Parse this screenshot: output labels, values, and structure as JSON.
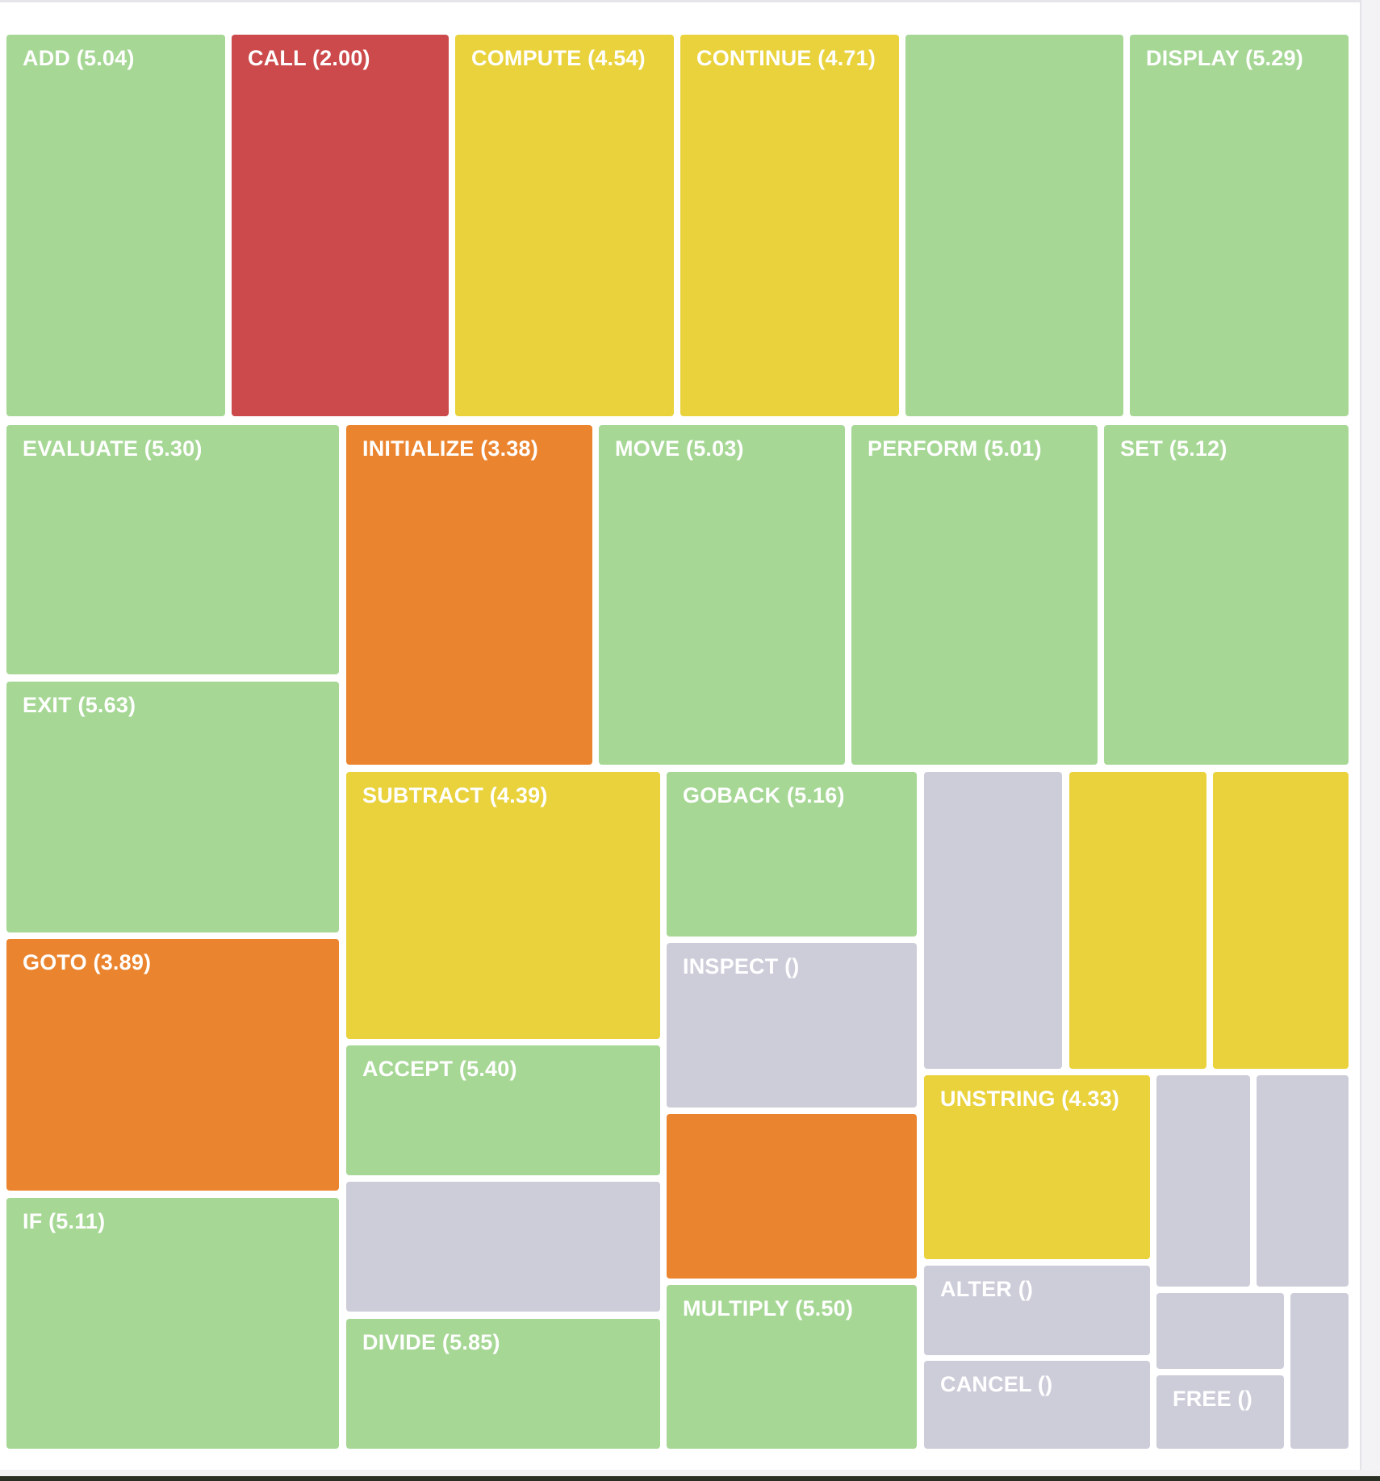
{
  "chart_data": {
    "type": "treemap",
    "title": "",
    "color_scale": {
      "red": "#cc4a4b",
      "orange": "#eb842f",
      "yellow": "#e9d23c",
      "green": "#a6d795",
      "grey": "#cdcdda"
    },
    "cells": [
      {
        "name": "ADD",
        "label": "ADD (5.04)",
        "score": 5.04,
        "color": "#a6d795"
      },
      {
        "name": "CALL",
        "label": "CALL (2.00)",
        "score": 2.0,
        "color": "#cc4a4b"
      },
      {
        "name": "COMPUTE",
        "label": "COMPUTE (4.54)",
        "score": 4.54,
        "color": "#e9d23c"
      },
      {
        "name": "CONTINUE",
        "label": "CONTINUE (4.71)",
        "score": 4.71,
        "color": "#e9d23c"
      },
      {
        "name": "",
        "label": "",
        "score": null,
        "color": "#a6d795"
      },
      {
        "name": "DISPLAY",
        "label": "DISPLAY (5.29)",
        "score": 5.29,
        "color": "#a6d795"
      },
      {
        "name": "EVALUATE",
        "label": "EVALUATE (5.30)",
        "score": 5.3,
        "color": "#a6d795"
      },
      {
        "name": "INITIALIZE",
        "label": "INITIALIZE (3.38)",
        "score": 3.38,
        "color": "#eb842f"
      },
      {
        "name": "MOVE",
        "label": "MOVE (5.03)",
        "score": 5.03,
        "color": "#a6d795"
      },
      {
        "name": "PERFORM",
        "label": "PERFORM (5.01)",
        "score": 5.01,
        "color": "#a6d795"
      },
      {
        "name": "SET",
        "label": "SET (5.12)",
        "score": 5.12,
        "color": "#a6d795"
      },
      {
        "name": "EXIT",
        "label": "EXIT (5.63)",
        "score": 5.63,
        "color": "#a6d795"
      },
      {
        "name": "GOTO",
        "label": "GOTO (3.89)",
        "score": 3.89,
        "color": "#eb842f"
      },
      {
        "name": "IF",
        "label": "IF (5.11)",
        "score": 5.11,
        "color": "#a6d795"
      },
      {
        "name": "SUBTRACT",
        "label": "SUBTRACT (4.39)",
        "score": 4.39,
        "color": "#e9d23c"
      },
      {
        "name": "ACCEPT",
        "label": "ACCEPT (5.40)",
        "score": 5.4,
        "color": "#a6d795"
      },
      {
        "name": "",
        "label": "",
        "score": null,
        "color": "#cdcdda"
      },
      {
        "name": "DIVIDE",
        "label": "DIVIDE (5.85)",
        "score": 5.85,
        "color": "#a6d795"
      },
      {
        "name": "GOBACK",
        "label": "GOBACK (5.16)",
        "score": 5.16,
        "color": "#a6d795"
      },
      {
        "name": "INSPECT",
        "label": "INSPECT ()",
        "score": null,
        "color": "#cdcdda"
      },
      {
        "name": "",
        "label": "",
        "score": null,
        "color": "#eb842f"
      },
      {
        "name": "MULTIPLY",
        "label": "MULTIPLY (5.50)",
        "score": 5.5,
        "color": "#a6d795"
      },
      {
        "name": "",
        "label": "",
        "score": null,
        "color": "#cdcdda"
      },
      {
        "name": "",
        "label": "",
        "score": null,
        "color": "#e9d23c"
      },
      {
        "name": "",
        "label": "",
        "score": null,
        "color": "#e9d23c"
      },
      {
        "name": "UNSTRING",
        "label": "UNSTRING (4.33)",
        "score": 4.33,
        "color": "#e9d23c"
      },
      {
        "name": "ALTER",
        "label": "ALTER ()",
        "score": null,
        "color": "#cdcdda"
      },
      {
        "name": "CANCEL",
        "label": "CANCEL ()",
        "score": null,
        "color": "#cdcdda"
      },
      {
        "name": "",
        "label": "",
        "score": null,
        "color": "#cdcdda"
      },
      {
        "name": "",
        "label": "",
        "score": null,
        "color": "#cdcdda"
      },
      {
        "name": "",
        "label": "",
        "score": null,
        "color": "#cdcdda"
      },
      {
        "name": "FREE",
        "label": "FREE ()",
        "score": null,
        "color": "#cdcdda"
      },
      {
        "name": "",
        "label": "",
        "score": null,
        "color": "#cdcdda"
      }
    ]
  }
}
